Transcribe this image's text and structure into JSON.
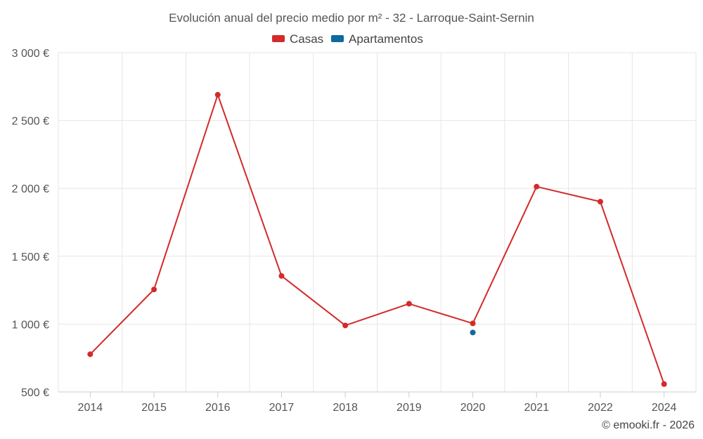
{
  "chart_data": {
    "type": "line",
    "title": "Evolución anual del precio medio por m² - 32 - Larroque-Saint-Sernin",
    "categories": [
      "2014",
      "2015",
      "2016",
      "2017",
      "2018",
      "2019",
      "2020",
      "2021",
      "2022",
      "2024"
    ],
    "ylim": [
      500,
      3000
    ],
    "yticks": [
      500,
      1000,
      1500,
      2000,
      2500,
      3000
    ],
    "ytick_labels": [
      "500 €",
      "1 000 €",
      "1 500 €",
      "2 000 €",
      "2 500 €",
      "3 000 €"
    ],
    "grid": true,
    "legend_position": "top-center",
    "series": [
      {
        "name": "Casas",
        "color": "#d42a2a",
        "values": [
          778,
          1255,
          2690,
          1355,
          990,
          1150,
          1005,
          2013,
          1902,
          558
        ]
      },
      {
        "name": "Apartamentos",
        "color": "#0f6aa0",
        "values": [
          null,
          null,
          null,
          null,
          null,
          null,
          938,
          null,
          null,
          null
        ]
      }
    ],
    "credit": "© emooki.fr - 2026"
  }
}
